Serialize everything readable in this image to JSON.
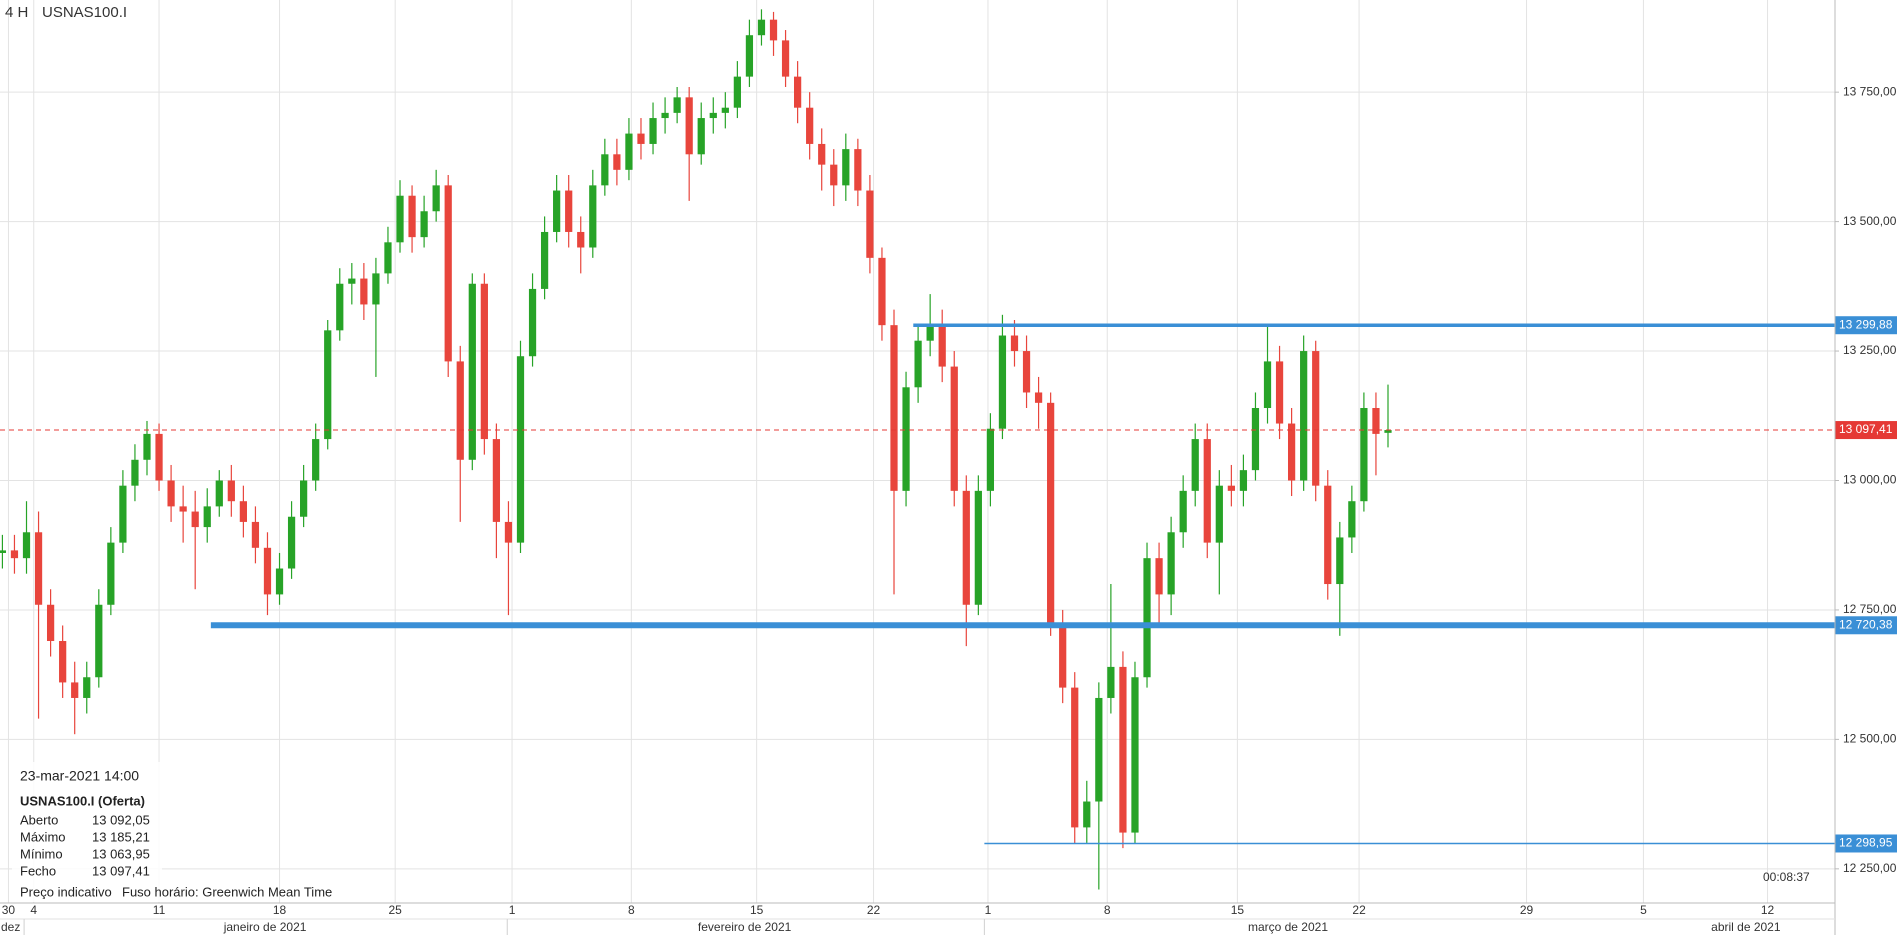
{
  "header": {
    "timeframe": "4 H",
    "symbol": "USNAS100.I"
  },
  "info_panel": {
    "datetime": "23-mar-2021 14:00",
    "instrument": "USNAS100.I (Oferta)",
    "rows": [
      [
        "Aberto",
        "13 092,05"
      ],
      [
        "Máximo",
        "13 185,21"
      ],
      [
        "Mínimo",
        "13 063,95"
      ],
      [
        "Fecho",
        "13 097,41"
      ]
    ],
    "note": "Preço indicativo",
    "timezone": "Fuso horário: Greenwich Mean Time"
  },
  "countdown": "00:08:37",
  "chart_data": {
    "type": "candlestick",
    "categories": [
      null,
      null,
      null,
      null,
      null,
      null,
      null,
      null,
      null,
      null,
      null,
      null,
      null,
      null,
      null,
      null,
      null,
      null,
      null,
      null,
      null,
      null,
      null,
      null,
      null,
      null,
      null,
      null,
      null,
      null,
      null,
      null,
      null,
      null,
      null,
      null,
      null,
      null,
      null,
      null,
      null,
      null,
      null,
      null,
      null,
      null,
      null,
      null,
      null,
      null,
      null,
      null,
      null,
      null,
      null,
      null,
      null,
      null,
      null,
      null,
      null,
      null,
      null,
      null,
      null,
      null,
      null,
      null,
      null,
      null,
      null,
      null,
      null,
      null,
      null,
      null,
      null,
      null,
      null,
      null,
      null,
      null,
      null,
      null,
      null,
      null,
      null,
      null,
      null,
      null,
      null,
      null,
      null,
      null,
      null,
      null,
      null,
      null,
      null,
      null,
      null,
      null,
      null,
      null,
      null,
      null,
      null,
      null,
      null,
      null,
      null,
      null,
      null,
      null,
      null,
      null
    ],
    "open": [
      12860,
      12865,
      12850,
      12900,
      12760,
      12690,
      12610,
      12580,
      12620,
      12760,
      12880,
      12990,
      13040,
      13090,
      13000,
      12950,
      12940,
      12910,
      12950,
      13000,
      12960,
      12920,
      12870,
      12780,
      12830,
      12930,
      13000,
      13080,
      13290,
      13380,
      13390,
      13340,
      13400,
      13460,
      13550,
      13470,
      13520,
      13570,
      13230,
      13040,
      13380,
      13080,
      12920,
      12880,
      13240,
      13370,
      13480,
      13560,
      13480,
      13450,
      13570,
      13630,
      13600,
      13670,
      13650,
      13700,
      13710,
      13740,
      13630,
      13700,
      13710,
      13720,
      13780,
      13860,
      13890,
      13850,
      13780,
      13720,
      13650,
      13610,
      13570,
      13640,
      13560,
      13430,
      13300,
      12980,
      13180,
      13270,
      13300,
      13220,
      12980,
      12760,
      12980,
      13100,
      13280,
      13250,
      13170,
      13150,
      12720,
      12600,
      12330,
      12380,
      12580,
      12640,
      12320,
      12620,
      12850,
      12780,
      12900,
      12980,
      13080,
      12880,
      12990,
      12980,
      13020,
      13140,
      13230,
      13110,
      13000,
      13250,
      12990,
      12800,
      12890,
      12960,
      13140,
      13092.05
    ],
    "high": [
      12895,
      12895,
      12960,
      12940,
      12790,
      12720,
      12650,
      12650,
      12790,
      12910,
      13020,
      13070,
      13115,
      13110,
      13030,
      12990,
      12980,
      12985,
      13020,
      13030,
      12990,
      12950,
      12900,
      12860,
      12960,
      13030,
      13110,
      13310,
      13410,
      13420,
      13420,
      13430,
      13490,
      13580,
      13570,
      13550,
      13600,
      13590,
      13260,
      13400,
      13400,
      13110,
      12960,
      13270,
      13400,
      13510,
      13590,
      13590,
      13510,
      13600,
      13660,
      13660,
      13700,
      13700,
      13730,
      13740,
      13760,
      13760,
      13730,
      13740,
      13750,
      13810,
      13890,
      13910,
      13905,
      13870,
      13810,
      13750,
      13680,
      13640,
      13670,
      13660,
      13590,
      13450,
      13330,
      13210,
      13300,
      13360,
      13330,
      13250,
      13010,
      13010,
      13130,
      13320,
      13310,
      13280,
      13200,
      13170,
      12750,
      12630,
      12420,
      12610,
      12800,
      12670,
      12650,
      12880,
      12880,
      12930,
      13010,
      13110,
      13110,
      13020,
      13030,
      13050,
      13170,
      13300,
      13260,
      13140,
      13280,
      13270,
      13020,
      12920,
      12990,
      13170,
      13170,
      13185.21
    ],
    "low": [
      12830,
      12820,
      12820,
      12540,
      12660,
      12580,
      12510,
      12550,
      12600,
      12740,
      12860,
      12960,
      13010,
      12980,
      12920,
      12880,
      12790,
      12880,
      12930,
      12930,
      12890,
      12840,
      12740,
      12760,
      12810,
      12910,
      12980,
      13060,
      13270,
      13340,
      13310,
      13200,
      13380,
      13440,
      13440,
      13450,
      13500,
      13200,
      12920,
      13020,
      13050,
      12850,
      12740,
      12860,
      13220,
      13350,
      13460,
      13450,
      13400,
      13430,
      13550,
      13570,
      13580,
      13620,
      13630,
      13670,
      13690,
      13540,
      13610,
      13670,
      13680,
      13700,
      13760,
      13840,
      13820,
      13760,
      13690,
      13620,
      13560,
      13530,
      13540,
      13530,
      13400,
      13270,
      12780,
      12950,
      13150,
      13240,
      13190,
      12950,
      12680,
      12740,
      12950,
      13080,
      13220,
      13140,
      13100,
      12700,
      12570,
      12300,
      12300,
      12210,
      12550,
      12290,
      12300,
      12600,
      12720,
      12740,
      12870,
      12950,
      12850,
      12780,
      12950,
      12950,
      13000,
      13110,
      13080,
      12970,
      12980,
      12960,
      12770,
      12700,
      12860,
      12940,
      13010,
      13063.95
    ],
    "close": [
      12865,
      12850,
      12900,
      12760,
      12690,
      12610,
      12580,
      12620,
      12760,
      12880,
      12990,
      13040,
      13090,
      13000,
      12950,
      12940,
      12910,
      12950,
      13000,
      12960,
      12920,
      12870,
      12780,
      12830,
      12930,
      13000,
      13080,
      13290,
      13380,
      13390,
      13340,
      13400,
      13460,
      13550,
      13470,
      13520,
      13570,
      13230,
      13040,
      13380,
      13080,
      12920,
      12880,
      13240,
      13370,
      13480,
      13560,
      13480,
      13450,
      13570,
      13630,
      13600,
      13670,
      13650,
      13700,
      13710,
      13740,
      13630,
      13700,
      13710,
      13720,
      13780,
      13860,
      13890,
      13850,
      13780,
      13720,
      13650,
      13610,
      13570,
      13640,
      13560,
      13430,
      13300,
      12980,
      13180,
      13270,
      13300,
      13220,
      12980,
      12760,
      12980,
      13100,
      13280,
      13250,
      13170,
      13150,
      12720,
      12600,
      12330,
      12380,
      12580,
      12640,
      12320,
      12620,
      12850,
      12780,
      12900,
      12980,
      13080,
      12880,
      12990,
      12980,
      13020,
      13140,
      13230,
      13110,
      13000,
      13250,
      12990,
      12800,
      12890,
      12960,
      13140,
      13090,
      13097.41
    ],
    "up_color": "#27a327",
    "down_color": "#e8453c",
    "xlim": [
      -0.2,
      152.1
    ],
    "xticks": [
      {
        "value": 0.5,
        "label": "30"
      },
      {
        "value": 2.6,
        "label": "4"
      },
      {
        "value": 13,
        "label": "11"
      },
      {
        "value": 23,
        "label": "18"
      },
      {
        "value": 32.6,
        "label": "25"
      },
      {
        "value": 42.3,
        "label": "1"
      },
      {
        "value": 52.2,
        "label": "8"
      },
      {
        "value": 62.6,
        "label": "15"
      },
      {
        "value": 72.3,
        "label": "22"
      },
      {
        "value": 81.8,
        "label": "1"
      },
      {
        "value": 91.7,
        "label": "8"
      },
      {
        "value": 102.5,
        "label": "15"
      },
      {
        "value": 112.6,
        "label": "22"
      },
      {
        "value": 126.5,
        "label": "29"
      },
      {
        "value": 136.2,
        "label": "5"
      },
      {
        "value": 146.5,
        "label": "12"
      }
    ],
    "month_ticks": [
      {
        "value": 0.6,
        "label": "dez"
      },
      {
        "value": 21.8,
        "label": "janeiro de 2021"
      },
      {
        "value": 61.6,
        "label": "fevereiro de 2021"
      },
      {
        "value": 106.7,
        "label": "março de 2021"
      },
      {
        "value": 144.7,
        "label": "abril de 2021"
      }
    ],
    "month_starts": [
      1.8,
      41.9,
      81.5
    ],
    "ylim": [
      12184,
      13928
    ],
    "yticks": [
      {
        "value": 12250,
        "label": "12 250,00"
      },
      {
        "value": 12500,
        "label": "12 500,00"
      },
      {
        "value": 12750,
        "label": "12 750,00"
      },
      {
        "value": 13000,
        "label": "13 000,00"
      },
      {
        "value": 13250,
        "label": "13 250,00"
      },
      {
        "value": 13500,
        "label": "13 500,00"
      },
      {
        "value": 13750,
        "label": "13 750,00"
      }
    ],
    "grid": true,
    "levels": [
      {
        "value": 13299.88,
        "label": "13 299,88",
        "x_start": 75.6,
        "color": "#3a8fd6"
      },
      {
        "value": 12720.38,
        "label": "12 720,38",
        "x_start": 17.3,
        "color": "#3a8fd6"
      },
      {
        "value": 12298.95,
        "label": "12 298,95",
        "x_start": 81.5,
        "color": "#3a8fd6"
      },
      {
        "value": 13097.41,
        "label": "13 097,41",
        "color": "#e53935",
        "dashed": true
      }
    ]
  }
}
